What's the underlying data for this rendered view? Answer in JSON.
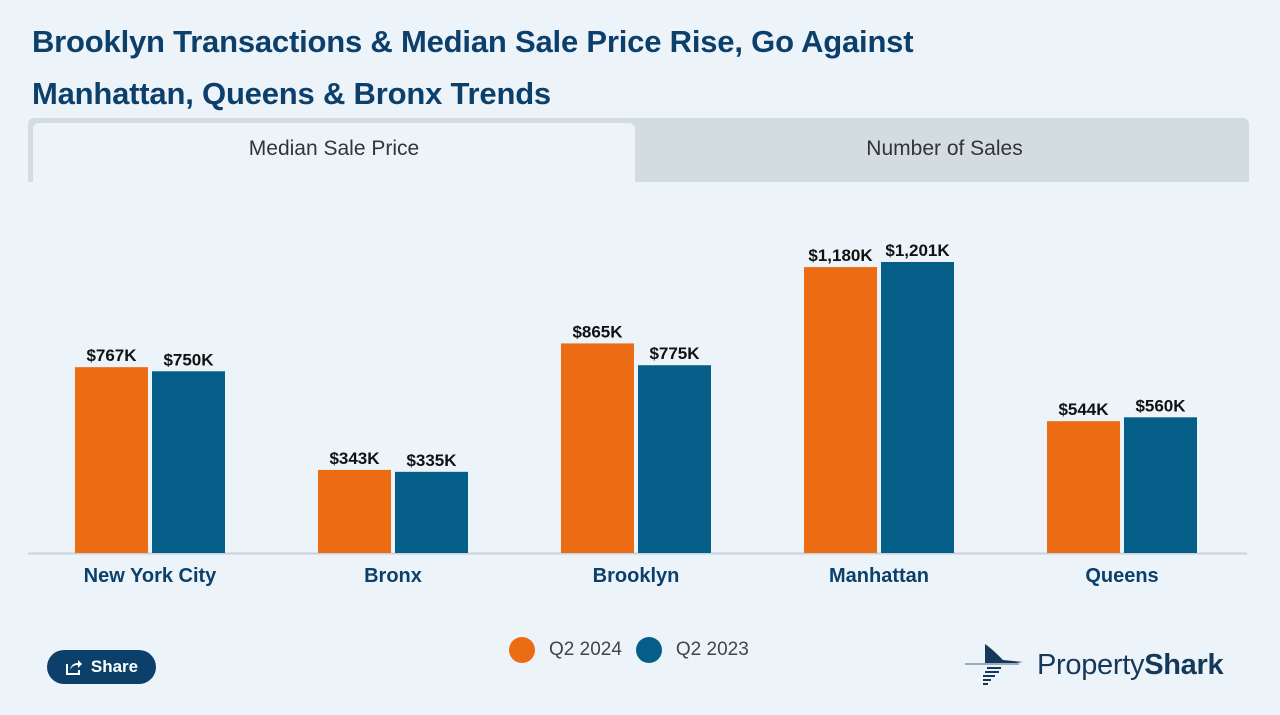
{
  "header": {
    "title_line1": "Brooklyn Transactions & Median Sale Price Rise, Go Against",
    "title_line2": "Manhattan, Queens & Bronx Trends"
  },
  "tabs": [
    {
      "label": "Median Sale Price",
      "active": true
    },
    {
      "label": "Number of Sales",
      "active": false
    }
  ],
  "colors": {
    "q2_2024": "#ec6c13",
    "q2_2023": "#055e87",
    "title": "#0d3f6b",
    "background": "#ecf4fa"
  },
  "share": {
    "label": "Share",
    "icon": "share-icon"
  },
  "logo": {
    "text_regular": "Property",
    "text_bold": "Shark"
  },
  "chart_data": {
    "type": "bar",
    "title": "Median Sale Price",
    "xlabel": "",
    "ylabel": "",
    "unit": "$K",
    "ylim": [
      0,
      1201
    ],
    "grid": false,
    "legend_position": "bottom-center",
    "categories": [
      "New York City",
      "Bronx",
      "Brooklyn",
      "Manhattan",
      "Queens"
    ],
    "series": [
      {
        "name": "Q2 2024",
        "color": "#ec6c13",
        "values": [
          767,
          343,
          865,
          1180,
          544
        ],
        "labels": [
          "$767K",
          "$343K",
          "$865K",
          "$1,180K",
          "$544K"
        ]
      },
      {
        "name": "Q2 2023",
        "color": "#055e87",
        "values": [
          750,
          335,
          775,
          1201,
          560
        ],
        "labels": [
          "$750K",
          "$335K",
          "$775K",
          "$1,201K",
          "$560K"
        ]
      }
    ]
  }
}
